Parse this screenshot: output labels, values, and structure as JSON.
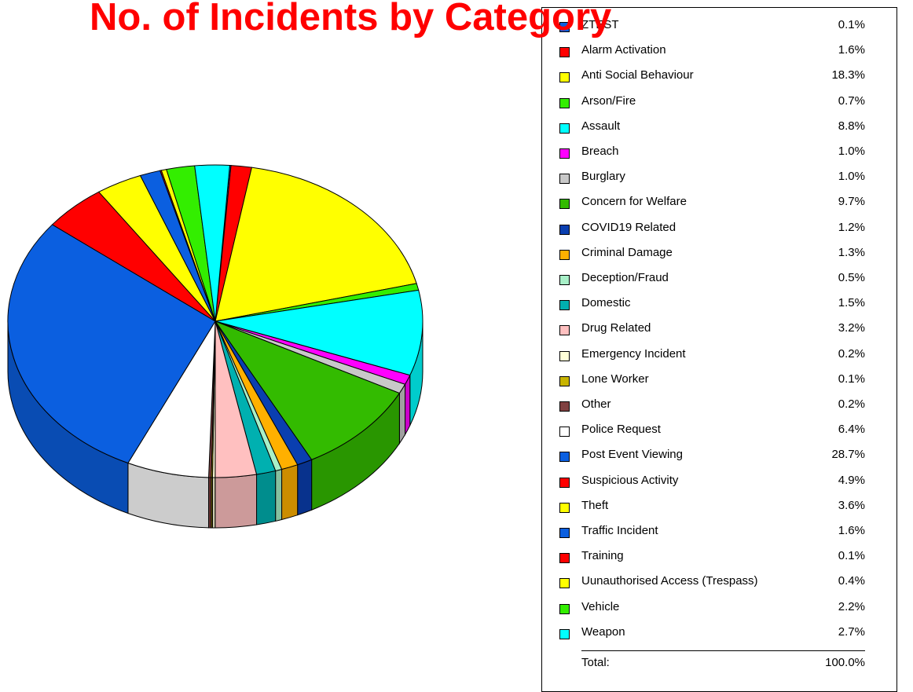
{
  "chart_data": {
    "type": "pie",
    "title": "No. of Incidents by Category",
    "unit": "%",
    "slices": [
      {
        "label": "ZTEST",
        "value": 0.1,
        "display": "0.1%",
        "color": "#0b5fe0"
      },
      {
        "label": "Alarm Activation",
        "value": 1.6,
        "display": "1.6%",
        "color": "#ff0000"
      },
      {
        "label": "Anti Social Behaviour",
        "value": 18.3,
        "display": "18.3%",
        "color": "#ffff00"
      },
      {
        "label": "Arson/Fire",
        "value": 0.7,
        "display": "0.7%",
        "color": "#33ee00"
      },
      {
        "label": "Assault",
        "value": 8.8,
        "display": "8.8%",
        "color": "#00ffff"
      },
      {
        "label": "Breach",
        "value": 1.0,
        "display": "1.0%",
        "color": "#ff00ff"
      },
      {
        "label": "Burglary",
        "value": 1.0,
        "display": "1.0%",
        "color": "#c8c8c8"
      },
      {
        "label": "Concern for Welfare",
        "value": 9.7,
        "display": "9.7%",
        "color": "#33bb00"
      },
      {
        "label": "COVID19 Related",
        "value": 1.2,
        "display": "1.2%",
        "color": "#0a3fb0"
      },
      {
        "label": "Criminal Damage",
        "value": 1.3,
        "display": "1.3%",
        "color": "#ffb000"
      },
      {
        "label": "Deception/Fraud",
        "value": 0.5,
        "display": "0.5%",
        "color": "#a8f0c8"
      },
      {
        "label": "Domestic",
        "value": 1.5,
        "display": "1.5%",
        "color": "#00b0b0"
      },
      {
        "label": "Drug Related",
        "value": 3.2,
        "display": "3.2%",
        "color": "#ffc0c0"
      },
      {
        "label": "Emergency Incident",
        "value": 0.2,
        "display": "0.2%",
        "color": "#ffffd8"
      },
      {
        "label": "Lone Worker",
        "value": 0.1,
        "display": "0.1%",
        "color": "#c8b400"
      },
      {
        "label": "Other",
        "value": 0.2,
        "display": "0.2%",
        "color": "#804040"
      },
      {
        "label": "Police Request",
        "value": 6.4,
        "display": "6.4%",
        "color": "#ffffff"
      },
      {
        "label": "Post Event Viewing",
        "value": 28.7,
        "display": "28.7%",
        "color": "#0b5fe0"
      },
      {
        "label": "Suspicious Activity",
        "value": 4.9,
        "display": "4.9%",
        "color": "#ff0000"
      },
      {
        "label": "Theft",
        "value": 3.6,
        "display": "3.6%",
        "color": "#ffff00"
      },
      {
        "label": "Traffic Incident",
        "value": 1.6,
        "display": "1.6%",
        "color": "#0b5fe0"
      },
      {
        "label": "Training",
        "value": 0.1,
        "display": "0.1%",
        "color": "#ff0000"
      },
      {
        "label": "Uunauthorised Access (Trespass)",
        "value": 0.4,
        "display": "0.4%",
        "color": "#ffff00"
      },
      {
        "label": "Vehicle",
        "value": 2.2,
        "display": "2.2%",
        "color": "#33ee00"
      },
      {
        "label": "Weapon",
        "value": 2.7,
        "display": "2.7%",
        "color": "#00ffff"
      }
    ],
    "total_label": "Total:",
    "total_value": "100.0%",
    "legend_position": "right"
  }
}
